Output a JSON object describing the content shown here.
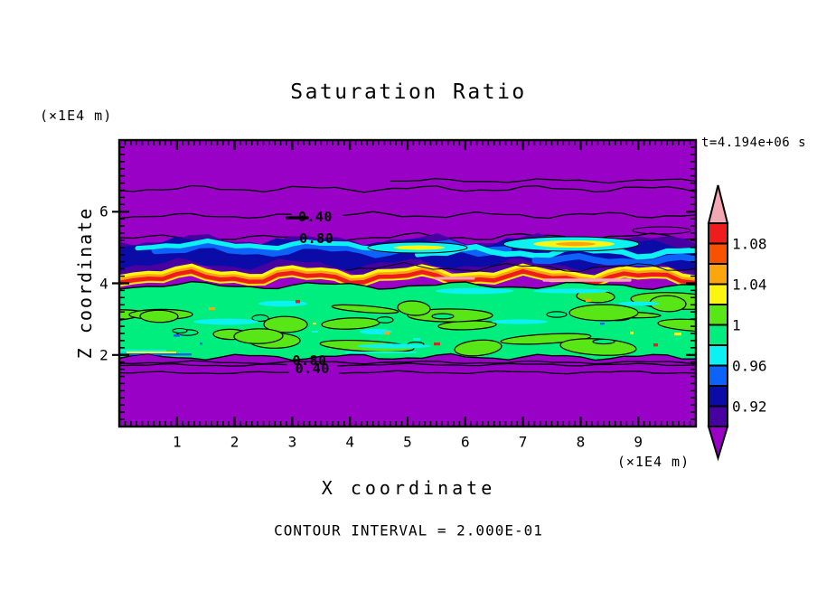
{
  "header": {
    "title": "Saturation Ratio",
    "y_axis_unit_top": "(×1E4 m)",
    "time_stamp": "t=4.194e+06 s"
  },
  "footer": {
    "contour_interval_text": "CONTOUR INTERVAL = 2.000E-01"
  },
  "chart_data": {
    "type": "heatmap",
    "subtype": "filled-contour-plot",
    "title": "Saturation Ratio",
    "xlabel": "X coordinate",
    "ylabel": "Z coordinate",
    "x_unit": "(×1E4 m)",
    "y_unit": "(×1E4 m)",
    "time_annotation": "t=4.194e+06 s",
    "contour_interval_label": "CONTOUR INTERVAL = 2.000E-01",
    "contour_line_interval": 0.2,
    "xlim": [
      0,
      10
    ],
    "ylim": [
      0,
      8
    ],
    "x_ticks": [
      "1",
      "2",
      "3",
      "4",
      "5",
      "6",
      "7",
      "8",
      "9"
    ],
    "y_ticks": [
      "2",
      "4",
      "6"
    ],
    "x_minor_step": 0.1,
    "y_minor_step": 0.2,
    "grid": false,
    "legend_position": "right-colorbar",
    "colorbar": {
      "orientation": "vertical",
      "tick_labels": [
        "1.08",
        "1.04",
        "1",
        "0.96",
        "0.92"
      ],
      "levels": [
        0.9,
        0.92,
        0.94,
        0.96,
        0.98,
        1.0,
        1.02,
        1.04,
        1.06,
        1.08,
        1.1
      ],
      "segments_top_to_bottom": [
        {
          "range": "> 1.10",
          "color": "#F2A7B2",
          "shape": "arrow-up"
        },
        {
          "range": "1.08-1.10",
          "color": "#EE1C1C"
        },
        {
          "range": "1.06-1.08",
          "color": "#F85200"
        },
        {
          "range": "1.04-1.06",
          "color": "#FBA60F"
        },
        {
          "range": "1.02-1.04",
          "color": "#FCF511"
        },
        {
          "range": "1.00-1.02",
          "color": "#59E617"
        },
        {
          "range": "0.98-1.00",
          "color": "#00EE7E"
        },
        {
          "range": "0.96-0.98",
          "color": "#0CF2F2"
        },
        {
          "range": "0.94-0.96",
          "color": "#0D62F8"
        },
        {
          "range": "0.92-0.94",
          "color": "#0B0BA8"
        },
        {
          "range": "0.90-0.92",
          "color": "#4601A0"
        },
        {
          "range": "< 0.90",
          "color": "#9901C6",
          "shape": "arrow-down"
        }
      ]
    },
    "in_plot_contour_labels": [
      {
        "text": "0.40",
        "x": 3.4,
        "z": 5.86
      },
      {
        "text": "0.80",
        "x": 3.42,
        "z": 5.24
      },
      {
        "text": "0.80",
        "x": 3.3,
        "z": 1.84
      },
      {
        "text": "0.40",
        "x": 3.35,
        "z": 1.62
      }
    ],
    "field_bands_top_to_bottom": [
      {
        "z_range": [
          5.2,
          8.0
        ],
        "appearance": "uniform purple background (S < 0.9) crossed by thin black contour lines labelled 0.40 and 0.80"
      },
      {
        "z_range": [
          4.3,
          5.2
        ],
        "appearance": "undulating dark violet/navy layer with blue and cyan streaks and lens-shaped cyan/yellow pockets (S ≈ 0.92-0.98)"
      },
      {
        "z_range": [
          3.95,
          4.35
        ],
        "appearance": "thin yellow-orange-red jet with light pink cores exceeding top of scale (S ≈ 1.02 to > 1.10)"
      },
      {
        "z_range": [
          1.95,
          3.95
        ],
        "appearance": "mottled spring-green layer (S ≈ 0.98-1.00) with lime blobs (1.00-1.02), cyan streaks and tiny red/orange/blue specks"
      },
      {
        "z_range": [
          0.0,
          1.95
        ],
        "appearance": "uniform purple background (S < 0.9) with overlapping contour line labels 0.80 and 0.40"
      }
    ]
  }
}
